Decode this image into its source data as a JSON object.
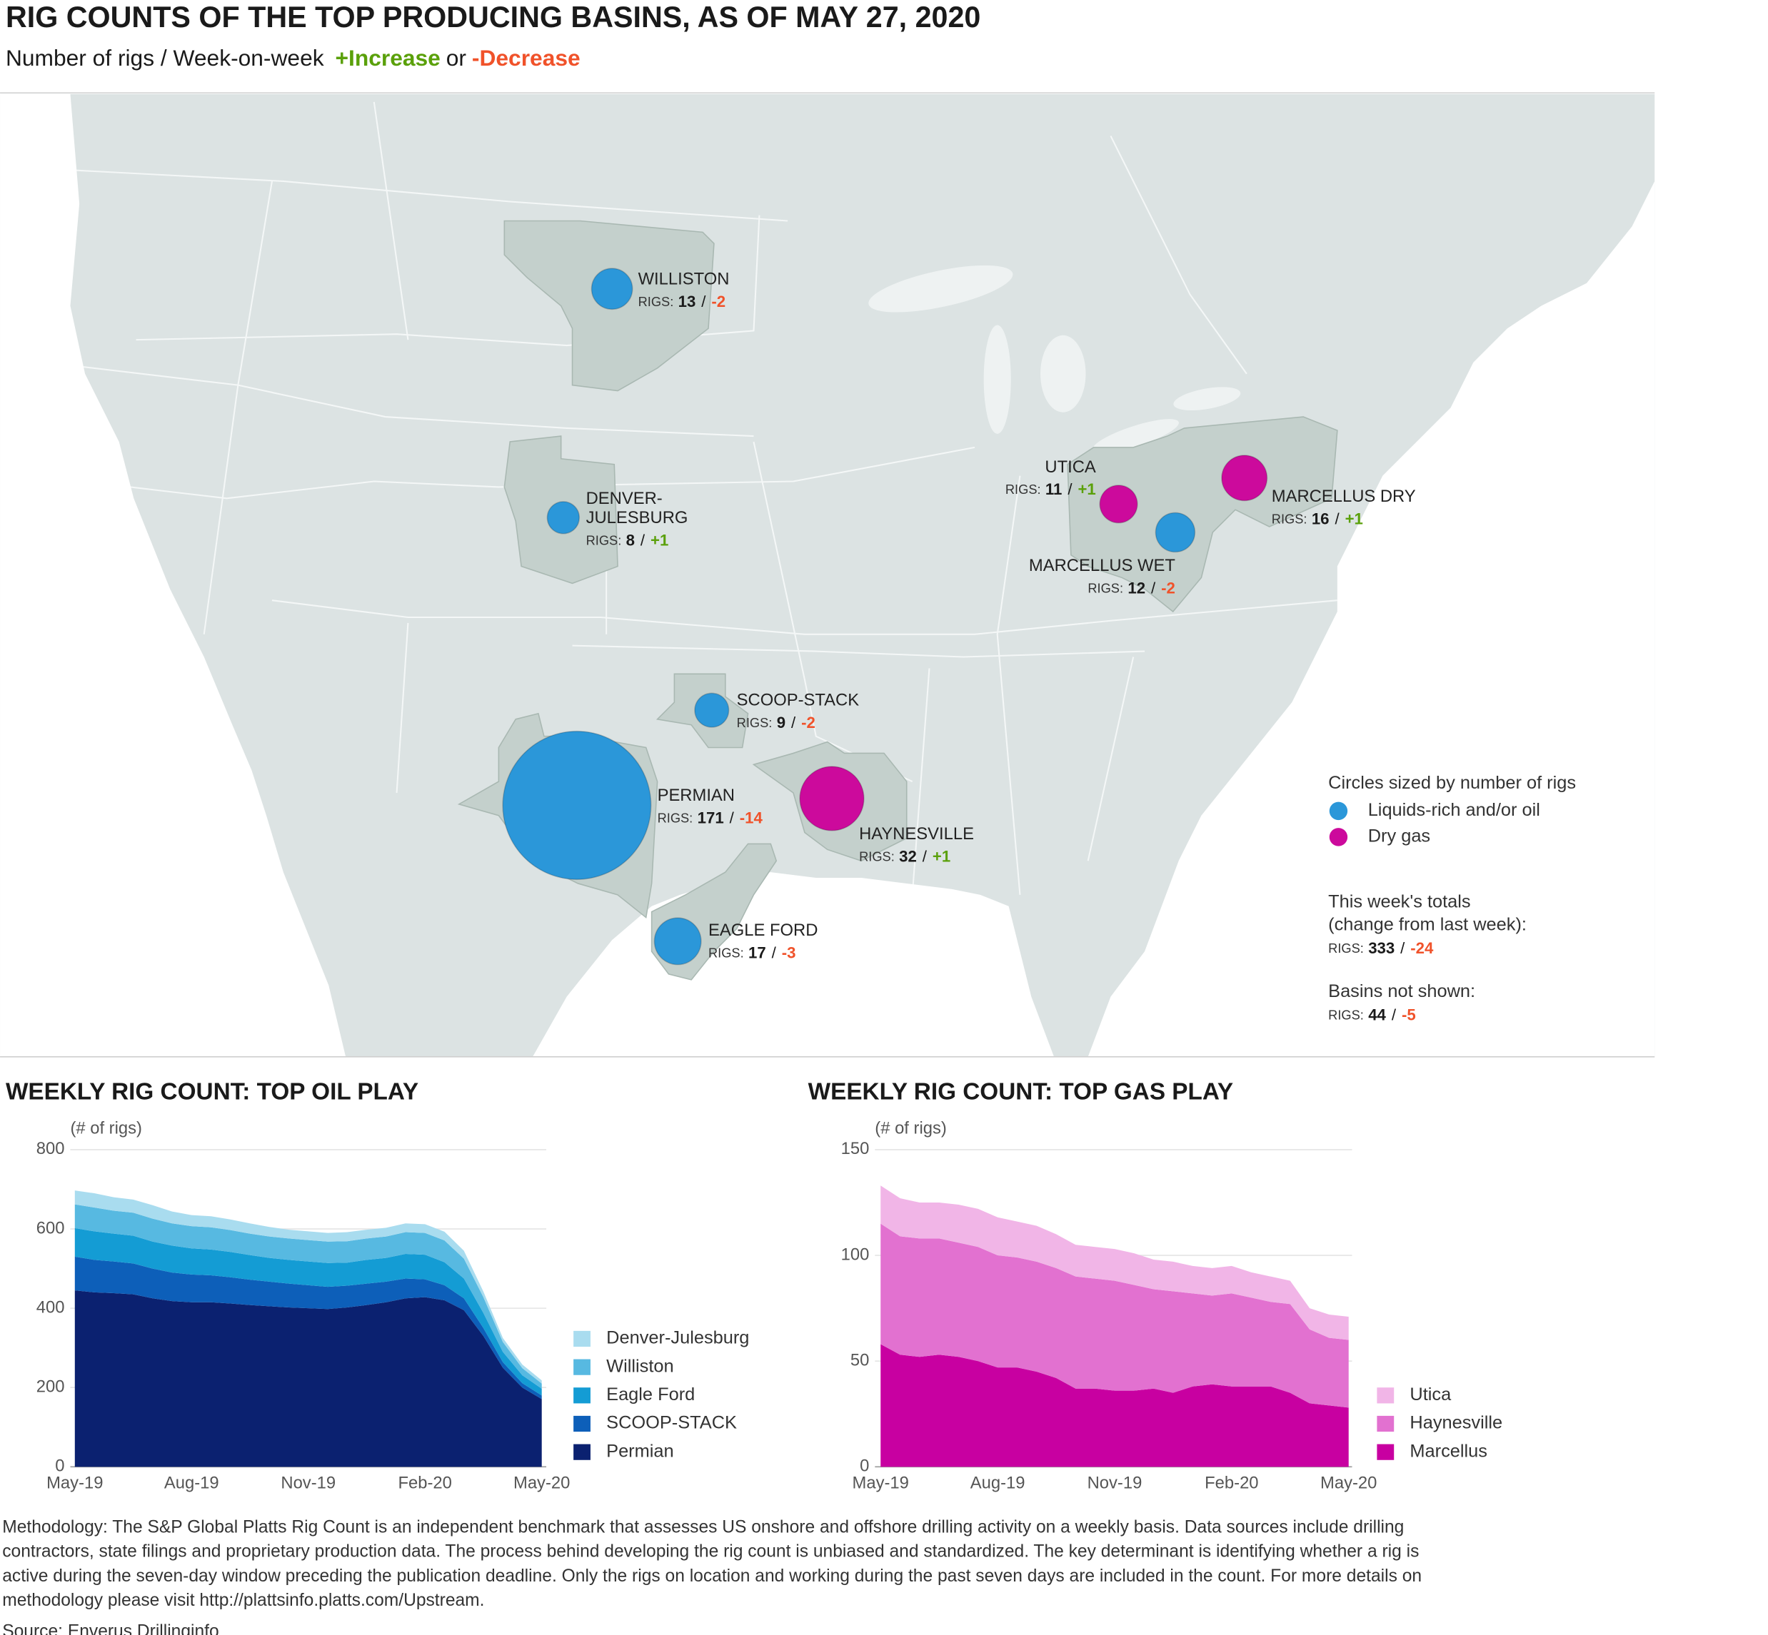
{
  "header": {
    "title": "RIG COUNTS OF THE TOP PRODUCING BASINS, AS OF MAY 27, 2020",
    "subtitle": "Number of rigs / Week-on-week",
    "increase": "+Increase",
    "or": "or",
    "decrease": "-Decrease",
    "increase_color": "#5aa00a",
    "decrease_color": "#f0522a"
  },
  "map": {
    "rigs_label": "RIGS:",
    "separator": "/",
    "basins": [
      {
        "name_lines": [
          "WILLISTON"
        ],
        "type": "oil",
        "rigs": 13,
        "change": "-2"
      },
      {
        "name_lines": [
          "DENVER-",
          "JULESBURG"
        ],
        "type": "oil",
        "rigs": 8,
        "change": "+1"
      },
      {
        "name_lines": [
          "SCOOP-STACK"
        ],
        "type": "oil",
        "rigs": 9,
        "change": "-2"
      },
      {
        "name_lines": [
          "PERMIAN"
        ],
        "type": "oil",
        "rigs": 171,
        "change": "-14"
      },
      {
        "name_lines": [
          "HAYNESVILLE"
        ],
        "type": "gas",
        "rigs": 32,
        "change": "+1"
      },
      {
        "name_lines": [
          "EAGLE FORD"
        ],
        "type": "oil",
        "rigs": 17,
        "change": "-3"
      },
      {
        "name_lines": [
          "UTICA"
        ],
        "type": "gas",
        "rigs": 11,
        "change": "+1"
      },
      {
        "name_lines": [
          "MARCELLUS WET"
        ],
        "type": "oil",
        "rigs": 12,
        "change": "-2"
      },
      {
        "name_lines": [
          "MARCELLUS DRY"
        ],
        "type": "gas",
        "rigs": 16,
        "change": "+1"
      }
    ],
    "legend": {
      "title": "Circles sized by number of rigs",
      "oil": "Liquids-rich and/or oil",
      "gas": "Dry gas",
      "oil_color": "#2b97d9",
      "gas_color": "#cc0a9c"
    },
    "totals": {
      "title_lines": [
        "This week's totals",
        "(change from last week):"
      ],
      "rigs": 333,
      "change": "-24"
    },
    "not_shown": {
      "title": "Basins not shown:",
      "rigs": 44,
      "change": "-5"
    }
  },
  "chart_data": [
    {
      "type": "area",
      "stacked": true,
      "title": "WEEKLY RIG COUNT: TOP OIL PLAY",
      "y_label": "(# of rigs)",
      "categories": [
        "May-19",
        null,
        null,
        null,
        null,
        null,
        "Aug-19",
        null,
        null,
        null,
        null,
        null,
        "Nov-19",
        null,
        null,
        null,
        null,
        null,
        "Feb-20",
        null,
        null,
        null,
        null,
        null,
        "May-20"
      ],
      "ylim": [
        0,
        800
      ],
      "yticks": [
        0,
        200,
        400,
        600,
        800
      ],
      "grid": true,
      "series": [
        {
          "name": "Permian",
          "color": "#0b2170",
          "values": [
            445,
            440,
            438,
            435,
            425,
            418,
            415,
            415,
            412,
            408,
            405,
            402,
            400,
            398,
            402,
            408,
            415,
            425,
            428,
            420,
            395,
            330,
            250,
            200,
            171
          ]
        },
        {
          "name": "SCOOP-STACK",
          "color": "#0d5fb9",
          "values": [
            85,
            82,
            80,
            78,
            75,
            72,
            70,
            68,
            66,
            64,
            62,
            60,
            58,
            56,
            55,
            54,
            52,
            50,
            45,
            38,
            30,
            20,
            14,
            11,
            9
          ]
        },
        {
          "name": "Eagle Ford",
          "color": "#149cd4",
          "values": [
            72,
            72,
            70,
            70,
            68,
            68,
            66,
            65,
            64,
            62,
            60,
            60,
            60,
            60,
            58,
            60,
            60,
            62,
            62,
            58,
            50,
            38,
            26,
            20,
            17
          ]
        },
        {
          "name": "Williston",
          "color": "#57b9e1",
          "values": [
            60,
            60,
            58,
            58,
            58,
            56,
            56,
            56,
            55,
            54,
            54,
            54,
            54,
            54,
            54,
            54,
            54,
            55,
            55,
            55,
            50,
            40,
            25,
            18,
            13
          ]
        },
        {
          "name": "Denver-Julesburg",
          "color": "#a9dcef",
          "values": [
            35,
            36,
            34,
            33,
            34,
            30,
            28,
            28,
            27,
            26,
            24,
            22,
            22,
            22,
            23,
            22,
            22,
            22,
            22,
            22,
            20,
            14,
            10,
            9,
            8
          ]
        }
      ]
    },
    {
      "type": "area",
      "stacked": true,
      "title": "WEEKLY RIG COUNT: TOP GAS PLAY",
      "y_label": "(# of rigs)",
      "categories": [
        "May-19",
        null,
        null,
        null,
        null,
        null,
        "Aug-19",
        null,
        null,
        null,
        null,
        null,
        "Nov-19",
        null,
        null,
        null,
        null,
        null,
        "Feb-20",
        null,
        null,
        null,
        null,
        null,
        "May-20"
      ],
      "ylim": [
        0,
        150
      ],
      "yticks": [
        0,
        50,
        100,
        150
      ],
      "grid": true,
      "series": [
        {
          "name": "Marcellus",
          "color": "#c800a1",
          "values": [
            58,
            53,
            52,
            53,
            52,
            50,
            47,
            47,
            45,
            42,
            37,
            37,
            36,
            36,
            37,
            35,
            38,
            39,
            38,
            38,
            38,
            35,
            30,
            29,
            28
          ]
        },
        {
          "name": "Haynesville",
          "color": "#e271d0",
          "values": [
            57,
            56,
            56,
            55,
            54,
            54,
            53,
            52,
            52,
            52,
            53,
            52,
            52,
            50,
            47,
            48,
            44,
            42,
            44,
            42,
            40,
            42,
            35,
            32,
            32
          ]
        },
        {
          "name": "Utica",
          "color": "#f1b5e7",
          "values": [
            18,
            18,
            17,
            17,
            18,
            18,
            18,
            17,
            17,
            16,
            15,
            15,
            15,
            15,
            14,
            14,
            13,
            13,
            13,
            12,
            12,
            11,
            10,
            11,
            11
          ]
        }
      ]
    }
  ],
  "footer": {
    "methodology_lines": [
      "Methodology: The S&P Global Platts Rig Count is an independent benchmark that assesses US onshore and offshore drilling activity on a weekly basis. Data sources include drilling",
      "contractors, state filings and proprietary production data. The process behind developing the rig count is unbiased and standardized. The key determinant is identifying whether a rig is",
      "active during the seven-day window preceding the publication deadline. Only the rigs on location and working during the past seven days are included in the count. For more details on",
      "methodology please visit http://plattsinfo.platts.com/Upstream."
    ],
    "source": "Source: Enverus Drillinginfo"
  }
}
